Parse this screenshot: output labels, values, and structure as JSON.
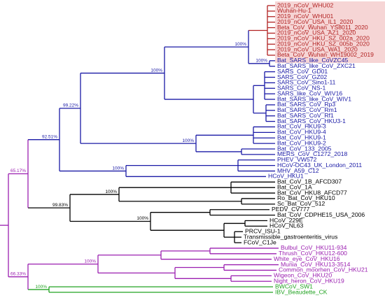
{
  "clades": [
    {
      "color": "#b22222",
      "leaves": [
        "2019_nCoV_WHU02",
        "Wuhan-Hu-1",
        "2019_nCoV_WHU01",
        "2019_nCoV_USA_IL1_2020",
        "Beta_CoV_Wuhan_YS8011_2020",
        "2019_nCoV_USA_AZ1_2020",
        "2019_nCoV_HKU_SZ_002a_2020",
        "2019_nCoV_HKU_SZ_005b_2020",
        "2019_nCoV_USA_WA1_2020",
        "Beta_CoV_Wuhan_WH19002_2019"
      ]
    },
    {
      "color": "#1a1aa6",
      "leaves": [
        "Bat_SARS_like_CoVZC45",
        "Bat_SARS_like_CoV_ZXC21",
        "SARS_CoV_GD01",
        "SARS_CoV_GZ02",
        "SARS_CoV_Sino1-11",
        "SARS_CoV_NS-1",
        "SARS_like_CoV_WIV16",
        "Bat_SARS_like_CoV_WIV1",
        "Bat_SARS_CoV_Rp3",
        "Bat_SARS_CoV_Rm1",
        "Bat_SARS_CoV_Rf1",
        "Bat_SARS_CoV_HKU3-1",
        "Bat_CoV_HKU9-3",
        "Bat_CoV_HKU9-4",
        "Bat_CoV_HKU9-1",
        "Bat_CoV_HKU9-2",
        "Bat_CoV_133_2005",
        "MERS_CoV_C1272_2018",
        "PHEV_VW572",
        "HCoV-OC43_UK_London_2011",
        "MHV_A59_C12",
        "HCoV_HKU1"
      ]
    },
    {
      "color": "#000000",
      "leaves": [
        "Bat_CoV_1B_AFCD307",
        "Bat_CoV_1A",
        "Bat_CoV_HKU8_AFCD77",
        "Ro_Bat_CoV_HKU10",
        "Sc_Bat_CoV_512",
        "PEDV_CV777",
        "Bat_CoV_CDPHE15_USA_2006",
        "HCoV_229E",
        "HCoV_NL63",
        "PRCV_ISU-1",
        "Transmissible_gastroenteritis_virus",
        "FCoV_C1Je"
      ]
    },
    {
      "color": "#9b1fb0",
      "leaves": [
        "Bulbul_CoV_HKU11-934",
        "Thrush_CoV_HKU12-600",
        "White_eye_CoV_HKU16",
        "Munia_CoV_HKU13-3514",
        "Common_moorhen_CoV_HKU21",
        "Wigeon_CoV_HKU20",
        "Night_heron_CoV_HKU19"
      ]
    },
    {
      "color": "#22a322",
      "leaves": [
        "BWCoV_SW1",
        "IBV_Beaudette_CK"
      ]
    }
  ],
  "support": [
    "65.17%",
    "92.51%",
    "99.22%",
    "100%",
    "100%",
    "100%",
    "100%",
    "100%",
    "99.83%",
    "100%",
    "100%",
    "66.33%",
    "100%",
    "100%"
  ]
}
